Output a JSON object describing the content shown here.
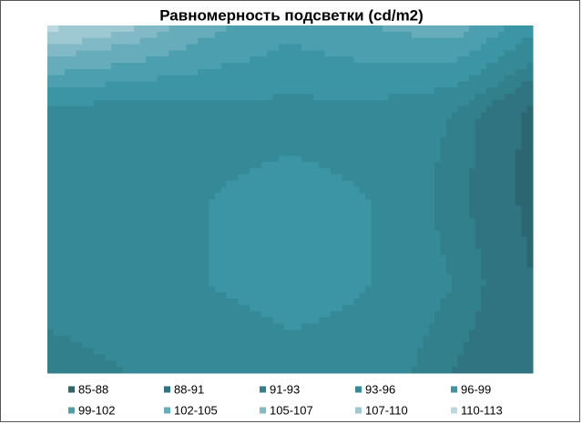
{
  "chart_data": {
    "type": "contour",
    "title": "Равномерность подсветки (cd/m2)",
    "levels": [
      85,
      88,
      91,
      93,
      96,
      99,
      102,
      105,
      107,
      110,
      113
    ],
    "series": [
      {
        "name": "85-88",
        "color": "#2c6671"
      },
      {
        "name": "88-91",
        "color": "#2f7480"
      },
      {
        "name": "91-93",
        "color": "#32808c"
      },
      {
        "name": "93-96",
        "color": "#368a98"
      },
      {
        "name": "96-99",
        "color": "#3b95a5"
      },
      {
        "name": "99-102",
        "color": "#4c9fae"
      },
      {
        "name": "102-105",
        "color": "#66acba"
      },
      {
        "name": "105-107",
        "color": "#81bac6"
      },
      {
        "name": "107-110",
        "color": "#9ec9d3"
      },
      {
        "name": "110-113",
        "color": "#bad8e0"
      }
    ],
    "z": [
      [
        111,
        108,
        103,
        100,
        102,
        104,
        97
      ],
      [
        95,
        94,
        95,
        95,
        95,
        93,
        87
      ],
      [
        93,
        95,
        96,
        97,
        96,
        92,
        87
      ],
      [
        95,
        96,
        96,
        97,
        96,
        93,
        88
      ],
      [
        91,
        93,
        94,
        95,
        95,
        91,
        88
      ]
    ]
  }
}
